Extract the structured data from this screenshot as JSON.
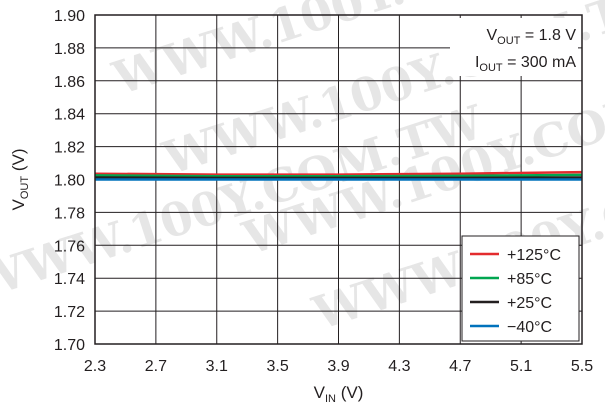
{
  "chart_data": {
    "type": "line",
    "xlabel": {
      "main": "V",
      "sub": "IN",
      "unit": " (V)"
    },
    "ylabel": {
      "main": "V",
      "sub": "OUT",
      "unit": " (V)"
    },
    "xlim": [
      2.3,
      5.5
    ],
    "ylim": [
      1.7,
      1.9
    ],
    "x_ticks": [
      "2.3",
      "2.7",
      "3.1",
      "3.5",
      "3.9",
      "4.3",
      "4.7",
      "5.1",
      "5.5"
    ],
    "y_ticks": [
      "1.90",
      "1.88",
      "1.86",
      "1.84",
      "1.82",
      "1.80",
      "1.78",
      "1.76",
      "1.74",
      "1.72",
      "1.70"
    ],
    "grid": true,
    "legend_position": "bottom-right",
    "annotations": [
      {
        "main": "V",
        "sub": "OUT",
        "rest": " = 1.8 V"
      },
      {
        "main": "I",
        "sub": "OUT",
        "rest": " = 300 mA"
      }
    ],
    "series": [
      {
        "name": "+125°C",
        "color": "#e32b2e",
        "x": [
          2.3,
          3.1,
          3.9,
          4.7,
          5.5
        ],
        "y": [
          1.8035,
          1.803,
          1.803,
          1.8035,
          1.8045
        ]
      },
      {
        "name": "+85°C",
        "color": "#00a650",
        "x": [
          2.3,
          3.1,
          3.9,
          4.7,
          5.5
        ],
        "y": [
          1.8025,
          1.802,
          1.802,
          1.8022,
          1.8028
        ]
      },
      {
        "name": "+25°C",
        "color": "#231f20",
        "x": [
          2.3,
          3.1,
          3.9,
          4.7,
          5.5
        ],
        "y": [
          1.8012,
          1.801,
          1.801,
          1.801,
          1.8012
        ]
      },
      {
        "name": "−40°C",
        "color": "#0072bc",
        "x": [
          2.3,
          3.1,
          3.9,
          4.7,
          5.5
        ],
        "y": [
          1.8,
          1.8,
          1.8,
          1.8,
          1.8
        ]
      }
    ]
  },
  "watermark": "WWW.100Y.COM.TW"
}
